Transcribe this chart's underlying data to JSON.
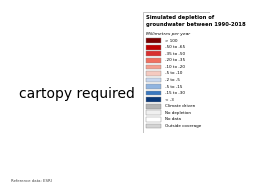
{
  "title": "Simulated depletion of\ngroundwater between 1990-2018",
  "subtitle": "Millimetres per year",
  "legend_entries": [
    {
      "label": "> 100",
      "color": "#7b0000"
    },
    {
      "label": "-50 to -65",
      "color": "#c00000"
    },
    {
      "label": "-35 to -50",
      "color": "#d93030"
    },
    {
      "label": "-20 to -35",
      "color": "#f07060"
    },
    {
      "label": "-10 to -20",
      "color": "#f5a090"
    },
    {
      "label": "-5 to -10",
      "color": "#f5cac0"
    },
    {
      "label": "-2 to -5",
      "color": "#c8d8f0"
    },
    {
      "label": "-5 to -15",
      "color": "#90b4e0"
    },
    {
      "label": "-15 to -30",
      "color": "#3a78c0"
    },
    {
      "label": "< -3",
      "color": "#0a3878"
    },
    {
      "label": "Climate driven",
      "color": "#b4b4b4"
    },
    {
      "label": "No depletion",
      "color": "#f0f0f0"
    },
    {
      "label": "No data",
      "color": "#ffffff"
    },
    {
      "label": "Outside coverage",
      "color": "#d4d4d4"
    }
  ],
  "ocean_color": "#bcd8ea",
  "land_color": "#f0f0f0",
  "dot_color": "#c8c8c8",
  "border_color": "#aaaaaa",
  "outside_color": "#c8c8c8",
  "source_text": "Reference data: ESRI",
  "extent": [
    -25,
    50,
    27,
    72
  ]
}
